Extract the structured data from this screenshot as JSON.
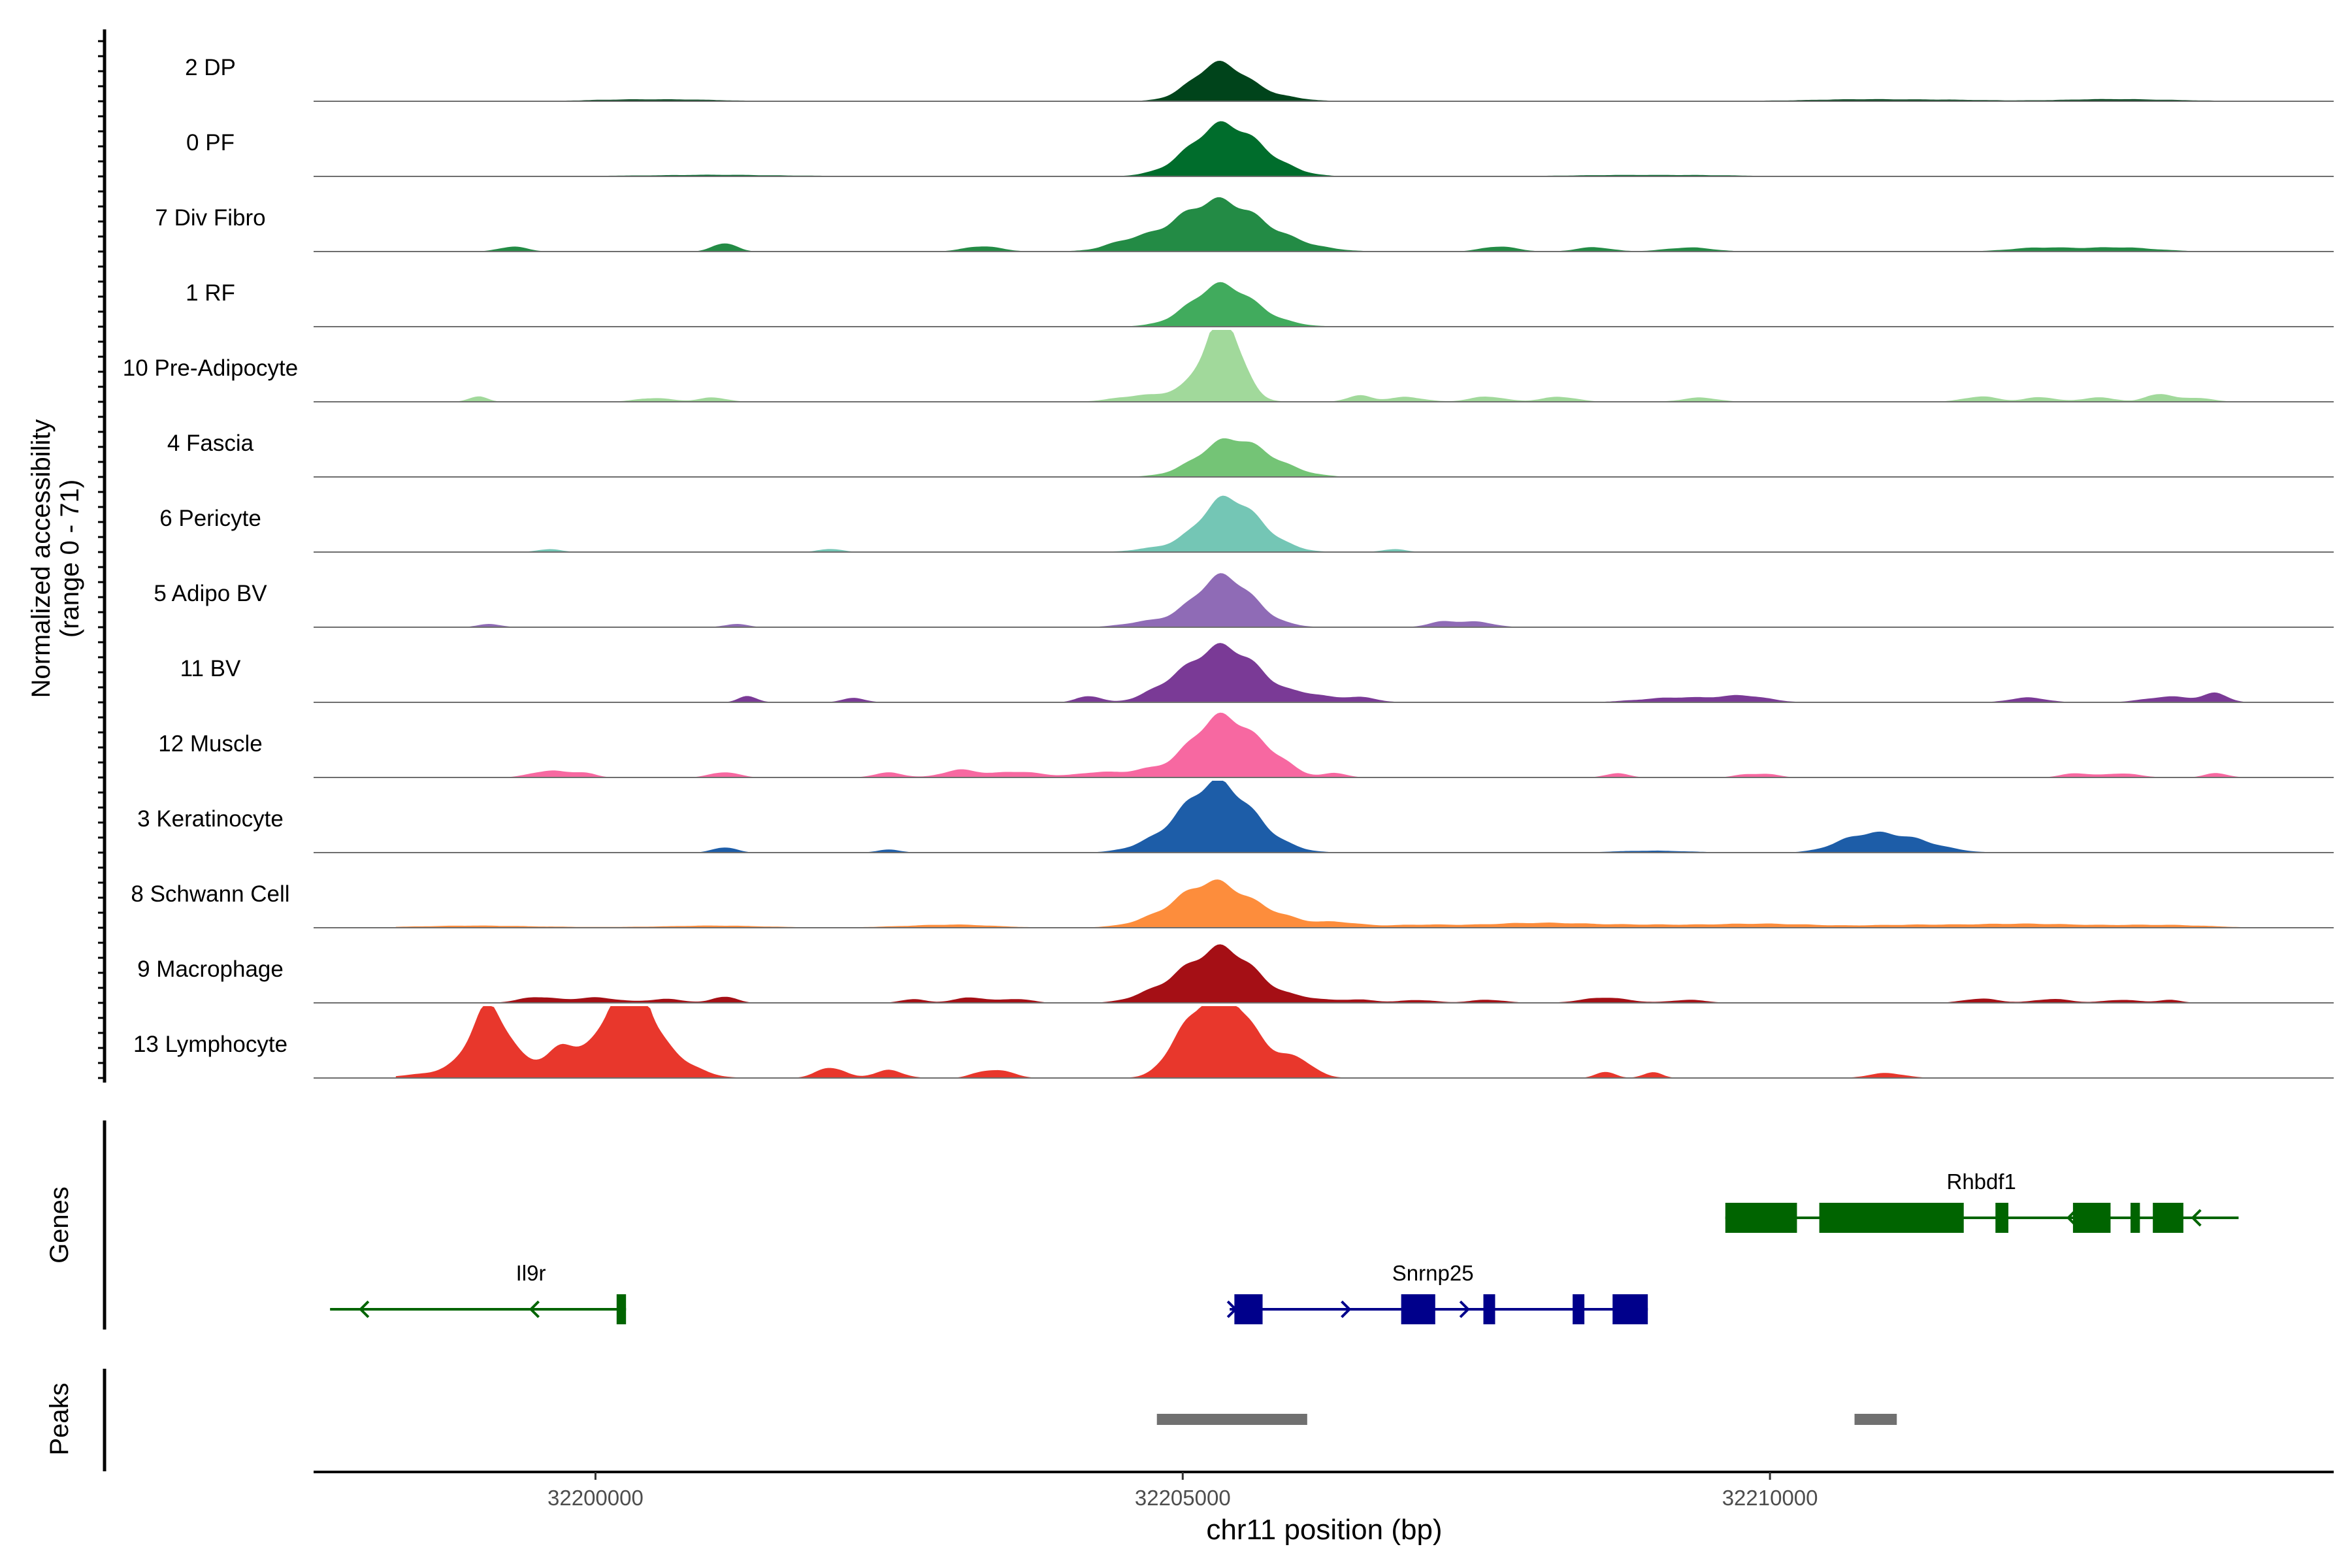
{
  "chart_data": {
    "type": "area",
    "y_axis_label_line1": "Normalized accessibility",
    "y_axis_label_line2": "(range 0 - 71)",
    "y_range": [
      0,
      71
    ],
    "x_axis_label": "chr11 position (bp)",
    "x_range": [
      32197600,
      32214800
    ],
    "x_ticks": [
      {
        "value": 32200000,
        "label": "32200000"
      },
      {
        "value": 32205000,
        "label": "32205000"
      },
      {
        "value": 32210000,
        "label": "32210000"
      }
    ],
    "tracks": [
      {
        "name": "2 DP",
        "color": "#00441B",
        "peaks": [
          [
            32205300,
            34,
            230
          ],
          [
            32205700,
            6,
            250
          ],
          [
            32200500,
            2,
            500
          ],
          [
            32211000,
            2,
            700
          ],
          [
            32213000,
            2,
            500
          ]
        ]
      },
      {
        "name": "0 PF",
        "color": "#006D2C",
        "peaks": [
          [
            32205300,
            43,
            280
          ],
          [
            32205650,
            14,
            250
          ],
          [
            32201000,
            1.5,
            700
          ],
          [
            32209000,
            1.5,
            700
          ]
        ]
      },
      {
        "name": "7 Div Fibro",
        "color": "#238B45",
        "peaks": [
          [
            32205300,
            48,
            420
          ],
          [
            32201100,
            8,
            100
          ],
          [
            32199300,
            5,
            120
          ],
          [
            32203300,
            5,
            160
          ],
          [
            32204500,
            4,
            150
          ],
          [
            32207700,
            5,
            150
          ],
          [
            32208500,
            4,
            150
          ],
          [
            32209300,
            4,
            200
          ],
          [
            32212300,
            4,
            250
          ],
          [
            32213000,
            4,
            300
          ]
        ]
      },
      {
        "name": "1 RF",
        "color": "#41AB5D",
        "peaks": [
          [
            32205300,
            35,
            260
          ],
          [
            32205600,
            8,
            260
          ]
        ]
      },
      {
        "name": "10 Pre-Adipocyte",
        "color": "#A1D99B",
        "peaks": [
          [
            32205350,
            70,
            150
          ],
          [
            32205150,
            15,
            250
          ],
          [
            32204600,
            5,
            200
          ],
          [
            32199000,
            5,
            80
          ],
          [
            32200500,
            4,
            150
          ],
          [
            32201000,
            4,
            120
          ],
          [
            32206500,
            6,
            100
          ],
          [
            32206900,
            5,
            150
          ],
          [
            32207600,
            5,
            150
          ],
          [
            32208200,
            5,
            150
          ],
          [
            32209400,
            4,
            150
          ],
          [
            32211800,
            5,
            150
          ],
          [
            32212300,
            5,
            120
          ],
          [
            32212800,
            4,
            150
          ],
          [
            32213300,
            8,
            100
          ],
          [
            32213600,
            4,
            150
          ]
        ]
      },
      {
        "name": "4 Fascia",
        "color": "#74C476",
        "peaks": [
          [
            32205400,
            33,
            280
          ],
          [
            32205750,
            8,
            250
          ]
        ]
      },
      {
        "name": "6 Pericyte",
        "color": "#74C6B5",
        "peaks": [
          [
            32205350,
            45,
            230
          ],
          [
            32205650,
            14,
            220
          ],
          [
            32204800,
            4,
            200
          ],
          [
            32199600,
            3,
            100
          ],
          [
            32202000,
            3,
            100
          ],
          [
            32206800,
            3,
            100
          ]
        ]
      },
      {
        "name": "5 Adipo BV",
        "color": "#8F6BB6",
        "peaks": [
          [
            32205350,
            48,
            260
          ],
          [
            32204700,
            5,
            200
          ],
          [
            32207200,
            5,
            120
          ],
          [
            32207500,
            5,
            150
          ],
          [
            32201200,
            3,
            100
          ],
          [
            32199100,
            3,
            100
          ]
        ]
      },
      {
        "name": "11 BV",
        "color": "#7A3A96",
        "peaks": [
          [
            32205300,
            45,
            300
          ],
          [
            32205600,
            12,
            250
          ],
          [
            32204200,
            6,
            100
          ],
          [
            32204800,
            5,
            150
          ],
          [
            32206100,
            6,
            150
          ],
          [
            32206500,
            5,
            150
          ],
          [
            32201300,
            6,
            80
          ],
          [
            32202200,
            4,
            100
          ],
          [
            32209200,
            5,
            300
          ],
          [
            32209800,
            6,
            200
          ],
          [
            32212200,
            5,
            150
          ],
          [
            32213400,
            6,
            200
          ],
          [
            32213800,
            8,
            100
          ],
          [
            32205000,
            4,
            200
          ]
        ]
      },
      {
        "name": "12 Muscle",
        "color": "#F768A1",
        "peaks": [
          [
            32205400,
            52,
            260
          ],
          [
            32205100,
            14,
            200
          ],
          [
            32205800,
            10,
            150
          ],
          [
            32199600,
            7,
            150
          ],
          [
            32199900,
            4,
            100
          ],
          [
            32201100,
            5,
            120
          ],
          [
            32202500,
            5,
            120
          ],
          [
            32203100,
            7,
            150
          ],
          [
            32203600,
            6,
            200
          ],
          [
            32204300,
            5,
            200
          ],
          [
            32204700,
            6,
            150
          ],
          [
            32206300,
            4,
            100
          ],
          [
            32208700,
            4,
            100
          ],
          [
            32209800,
            3,
            100
          ],
          [
            32210000,
            3,
            100
          ],
          [
            32212600,
            4,
            120
          ],
          [
            32213000,
            4,
            150
          ],
          [
            32213800,
            4,
            100
          ]
        ]
      },
      {
        "name": "3 Keratinocyte",
        "color": "#1D5DA8",
        "peaks": [
          [
            32205250,
            62,
            300
          ],
          [
            32205600,
            10,
            250
          ],
          [
            32211050,
            18,
            300
          ],
          [
            32210700,
            6,
            200
          ],
          [
            32201100,
            5,
            100
          ],
          [
            32202500,
            3,
            100
          ],
          [
            32204700,
            3,
            200
          ],
          [
            32209000,
            2,
            300
          ]
        ]
      },
      {
        "name": "8 Schwann Cell",
        "color": "#FD8D3C",
        "peaks": [
          [
            32205300,
            35,
            300
          ],
          [
            32205000,
            12,
            300
          ],
          [
            32205800,
            8,
            200
          ],
          [
            32206300,
            5,
            200
          ],
          [
            32207000,
            3,
            300
          ],
          [
            32208000,
            5,
            400
          ],
          [
            32209000,
            3,
            400
          ],
          [
            32210000,
            4,
            400
          ],
          [
            32211200,
            3,
            400
          ],
          [
            32212200,
            4,
            400
          ],
          [
            32213300,
            3,
            400
          ],
          [
            32201000,
            2,
            500
          ],
          [
            32199000,
            2,
            600
          ],
          [
            32203000,
            3,
            400
          ]
        ]
      },
      {
        "name": "9 Macrophage",
        "color": "#A50F15",
        "peaks": [
          [
            32205300,
            45,
            230
          ],
          [
            32205600,
            15,
            200
          ],
          [
            32204800,
            12,
            200
          ],
          [
            32205000,
            8,
            150
          ],
          [
            32206000,
            5,
            200
          ],
          [
            32199500,
            6,
            150
          ],
          [
            32200000,
            5,
            200
          ],
          [
            32200600,
            4,
            150
          ],
          [
            32201100,
            6,
            100
          ],
          [
            32202700,
            4,
            100
          ],
          [
            32203200,
            5,
            150
          ],
          [
            32203600,
            4,
            120
          ],
          [
            32207000,
            3,
            150
          ],
          [
            32207600,
            3,
            150
          ],
          [
            32208600,
            5,
            200
          ],
          [
            32209300,
            3,
            150
          ],
          [
            32211800,
            4,
            150
          ],
          [
            32212400,
            4,
            150
          ],
          [
            32213000,
            3,
            150
          ],
          [
            32213400,
            3,
            100
          ],
          [
            32206500,
            3,
            150
          ]
        ]
      },
      {
        "name": "13 Lymphocyte",
        "color": "#E8372C",
        "peaks": [
          [
            32199100,
            55,
            150
          ],
          [
            32199200,
            15,
            450
          ],
          [
            32200300,
            83,
            130
          ],
          [
            32200100,
            28,
            300
          ],
          [
            32200500,
            28,
            250
          ],
          [
            32199700,
            12,
            120
          ],
          [
            32202000,
            10,
            120
          ],
          [
            32202500,
            8,
            120
          ],
          [
            32205300,
            62,
            230
          ],
          [
            32205500,
            25,
            300
          ],
          [
            32205000,
            15,
            150
          ],
          [
            32205900,
            10,
            150
          ],
          [
            32204900,
            6,
            100
          ],
          [
            32206050,
            6,
            100
          ],
          [
            32203300,
            6,
            100
          ],
          [
            32203500,
            6,
            100
          ],
          [
            32208600,
            6,
            80
          ],
          [
            32209000,
            6,
            80
          ],
          [
            32211000,
            5,
            150
          ]
        ]
      }
    ],
    "genes": [
      {
        "name": "Il9r",
        "strand": "-",
        "color": "#006400",
        "row": 2,
        "start": 32197740,
        "end": 32200260,
        "exons": [
          [
            32200180,
            32200260
          ]
        ],
        "arrows": [
          32198000,
          32199450
        ]
      },
      {
        "name": "Snrnp25",
        "strand": "+",
        "color": "#00008B",
        "row": 2,
        "start": 32205400,
        "end": 32208960,
        "exons": [
          [
            32205440,
            32205680
          ],
          [
            32206860,
            32207150
          ],
          [
            32207560,
            32207660
          ],
          [
            32208320,
            32208420
          ],
          [
            32208660,
            32208960
          ]
        ],
        "arrows": [
          32205450,
          32206420,
          32207430
        ]
      },
      {
        "name": "Rhbdf1",
        "strand": "-",
        "color": "#006400",
        "row": 1,
        "start": 32209620,
        "end": 32213990,
        "exons": [
          [
            32209620,
            32210230
          ],
          [
            32210420,
            32211650
          ],
          [
            32211920,
            32212030
          ],
          [
            32212580,
            32212900
          ],
          [
            32213070,
            32213150
          ],
          [
            32213260,
            32213520
          ]
        ],
        "arrows": [
          32212540,
          32213600
        ]
      }
    ],
    "peak_regions": [
      [
        32204780,
        32206060
      ],
      [
        32210720,
        32211080
      ]
    ],
    "panel_labels": {
      "genes": "Genes",
      "peaks": "Peaks"
    }
  }
}
